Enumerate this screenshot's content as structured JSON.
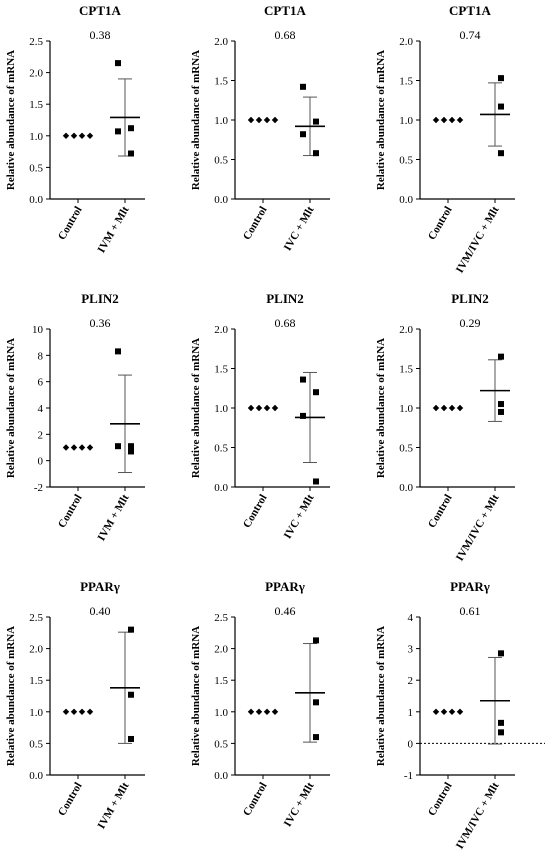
{
  "chart_data": [
    {
      "type": "scatter",
      "title": "CPT1A",
      "pvalue": "0.38",
      "ylabel": "Relative abundance of mRNA",
      "categories": [
        "Control",
        "IVM + Mlt"
      ],
      "ylim": [
        0,
        2.5
      ],
      "yticks": [
        "0.0",
        "0.5",
        "1.0",
        "1.5",
        "2.0",
        "2.5"
      ],
      "zero_line": false,
      "series": [
        {
          "points": [
            1,
            1,
            1,
            1
          ],
          "mean": 1,
          "sd": 0
        },
        {
          "points": [
            2.15,
            1.12,
            1.07,
            0.72
          ],
          "mean": 1.29,
          "sd": 0.61
        }
      ]
    },
    {
      "type": "scatter",
      "title": "CPT1A",
      "pvalue": "0.68",
      "ylabel": "Relative abundance of mRNA",
      "categories": [
        "Control",
        "IVC + Mlt"
      ],
      "ylim": [
        0,
        2.0
      ],
      "yticks": [
        "0.0",
        "0.5",
        "1.0",
        "1.5",
        "2.0"
      ],
      "zero_line": false,
      "series": [
        {
          "points": [
            1,
            1,
            1,
            1
          ],
          "mean": 1,
          "sd": 0
        },
        {
          "points": [
            1.42,
            0.98,
            0.82,
            0.58
          ],
          "mean": 0.92,
          "sd": 0.37
        }
      ]
    },
    {
      "type": "scatter",
      "title": "CPT1A",
      "pvalue": "0.74",
      "ylabel": "Relative abundance of mRNA",
      "categories": [
        "Control",
        "IVM/IVC + Mlt"
      ],
      "ylim": [
        0,
        2.0
      ],
      "yticks": [
        "0.0",
        "0.5",
        "1.0",
        "1.5",
        "2.0"
      ],
      "zero_line": false,
      "series": [
        {
          "points": [
            1,
            1,
            1,
            1
          ],
          "mean": 1,
          "sd": 0
        },
        {
          "points": [
            1.53,
            1.17,
            0.58
          ],
          "mean": 1.07,
          "sd": 0.4
        }
      ]
    },
    {
      "type": "scatter",
      "title": "PLIN2",
      "pvalue": "0.36",
      "ylabel": "Relative abundance of mRNA",
      "categories": [
        "Control",
        "IVM + Mlt"
      ],
      "ylim": [
        -2,
        10
      ],
      "yticks": [
        "-2",
        "0",
        "2",
        "4",
        "6",
        "8",
        "10"
      ],
      "zero_line": false,
      "series": [
        {
          "points": [
            1,
            1,
            1,
            1
          ],
          "mean": 1,
          "sd": 0
        },
        {
          "points": [
            8.3,
            1.1,
            1.1,
            0.7
          ],
          "mean": 2.8,
          "sd": 3.7
        }
      ]
    },
    {
      "type": "scatter",
      "title": "PLIN2",
      "pvalue": "0.68",
      "ylabel": "Relative abundance of mRNA",
      "categories": [
        "Control",
        "IVC + Mlt"
      ],
      "ylim": [
        0,
        2.0
      ],
      "yticks": [
        "0.0",
        "0.5",
        "1.0",
        "1.5",
        "2.0"
      ],
      "zero_line": false,
      "series": [
        {
          "points": [
            1,
            1,
            1,
            1
          ],
          "mean": 1,
          "sd": 0
        },
        {
          "points": [
            1.36,
            1.2,
            0.9,
            0.07
          ],
          "mean": 0.88,
          "sd": 0.57
        }
      ]
    },
    {
      "type": "scatter",
      "title": "PLIN2",
      "pvalue": "0.29",
      "ylabel": "Relative abundance of mRNA",
      "categories": [
        "Control",
        "IVM/IVC + Mlt"
      ],
      "ylim": [
        0,
        2.0
      ],
      "yticks": [
        "0.0",
        "0.5",
        "1.0",
        "1.5",
        "2.0"
      ],
      "zero_line": false,
      "series": [
        {
          "points": [
            1,
            1,
            1,
            1
          ],
          "mean": 1,
          "sd": 0
        },
        {
          "points": [
            1.65,
            1.05,
            0.95
          ],
          "mean": 1.22,
          "sd": 0.39
        }
      ]
    },
    {
      "type": "scatter",
      "title": "PPARγ",
      "pvalue": "0.40",
      "ylabel": "Relative abundance of mRNA",
      "categories": [
        "Control",
        "IVM + Mlt"
      ],
      "ylim": [
        0,
        2.5
      ],
      "yticks": [
        "0.0",
        "0.5",
        "1.0",
        "1.5",
        "2.0",
        "2.5"
      ],
      "zero_line": false,
      "series": [
        {
          "points": [
            1,
            1,
            1,
            1
          ],
          "mean": 1,
          "sd": 0
        },
        {
          "points": [
            2.3,
            1.27,
            0.57
          ],
          "mean": 1.38,
          "sd": 0.88
        }
      ]
    },
    {
      "type": "scatter",
      "title": "PPARγ",
      "pvalue": "0.46",
      "ylabel": "Relative abundance of mRNA",
      "categories": [
        "Control",
        "IVC + Mlt"
      ],
      "ylim": [
        0,
        2.5
      ],
      "yticks": [
        "0.0",
        "0.5",
        "1.0",
        "1.5",
        "2.0",
        "2.5"
      ],
      "zero_line": false,
      "series": [
        {
          "points": [
            1,
            1,
            1,
            1
          ],
          "mean": 1,
          "sd": 0
        },
        {
          "points": [
            2.13,
            1.15,
            0.6
          ],
          "mean": 1.3,
          "sd": 0.78
        }
      ]
    },
    {
      "type": "scatter",
      "title": "PPARγ",
      "pvalue": "0.61",
      "ylabel": "Relative abundance of mRNA",
      "categories": [
        "Control",
        "IVM/IVC + Mlt"
      ],
      "ylim": [
        -1,
        4
      ],
      "yticks": [
        "-1",
        "0",
        "1",
        "2",
        "3",
        "4"
      ],
      "zero_line": true,
      "series": [
        {
          "points": [
            1,
            1,
            1,
            1
          ],
          "mean": 1,
          "sd": 0
        },
        {
          "points": [
            2.85,
            0.65,
            0.35
          ],
          "mean": 1.35,
          "sd": 1.37
        }
      ]
    }
  ]
}
